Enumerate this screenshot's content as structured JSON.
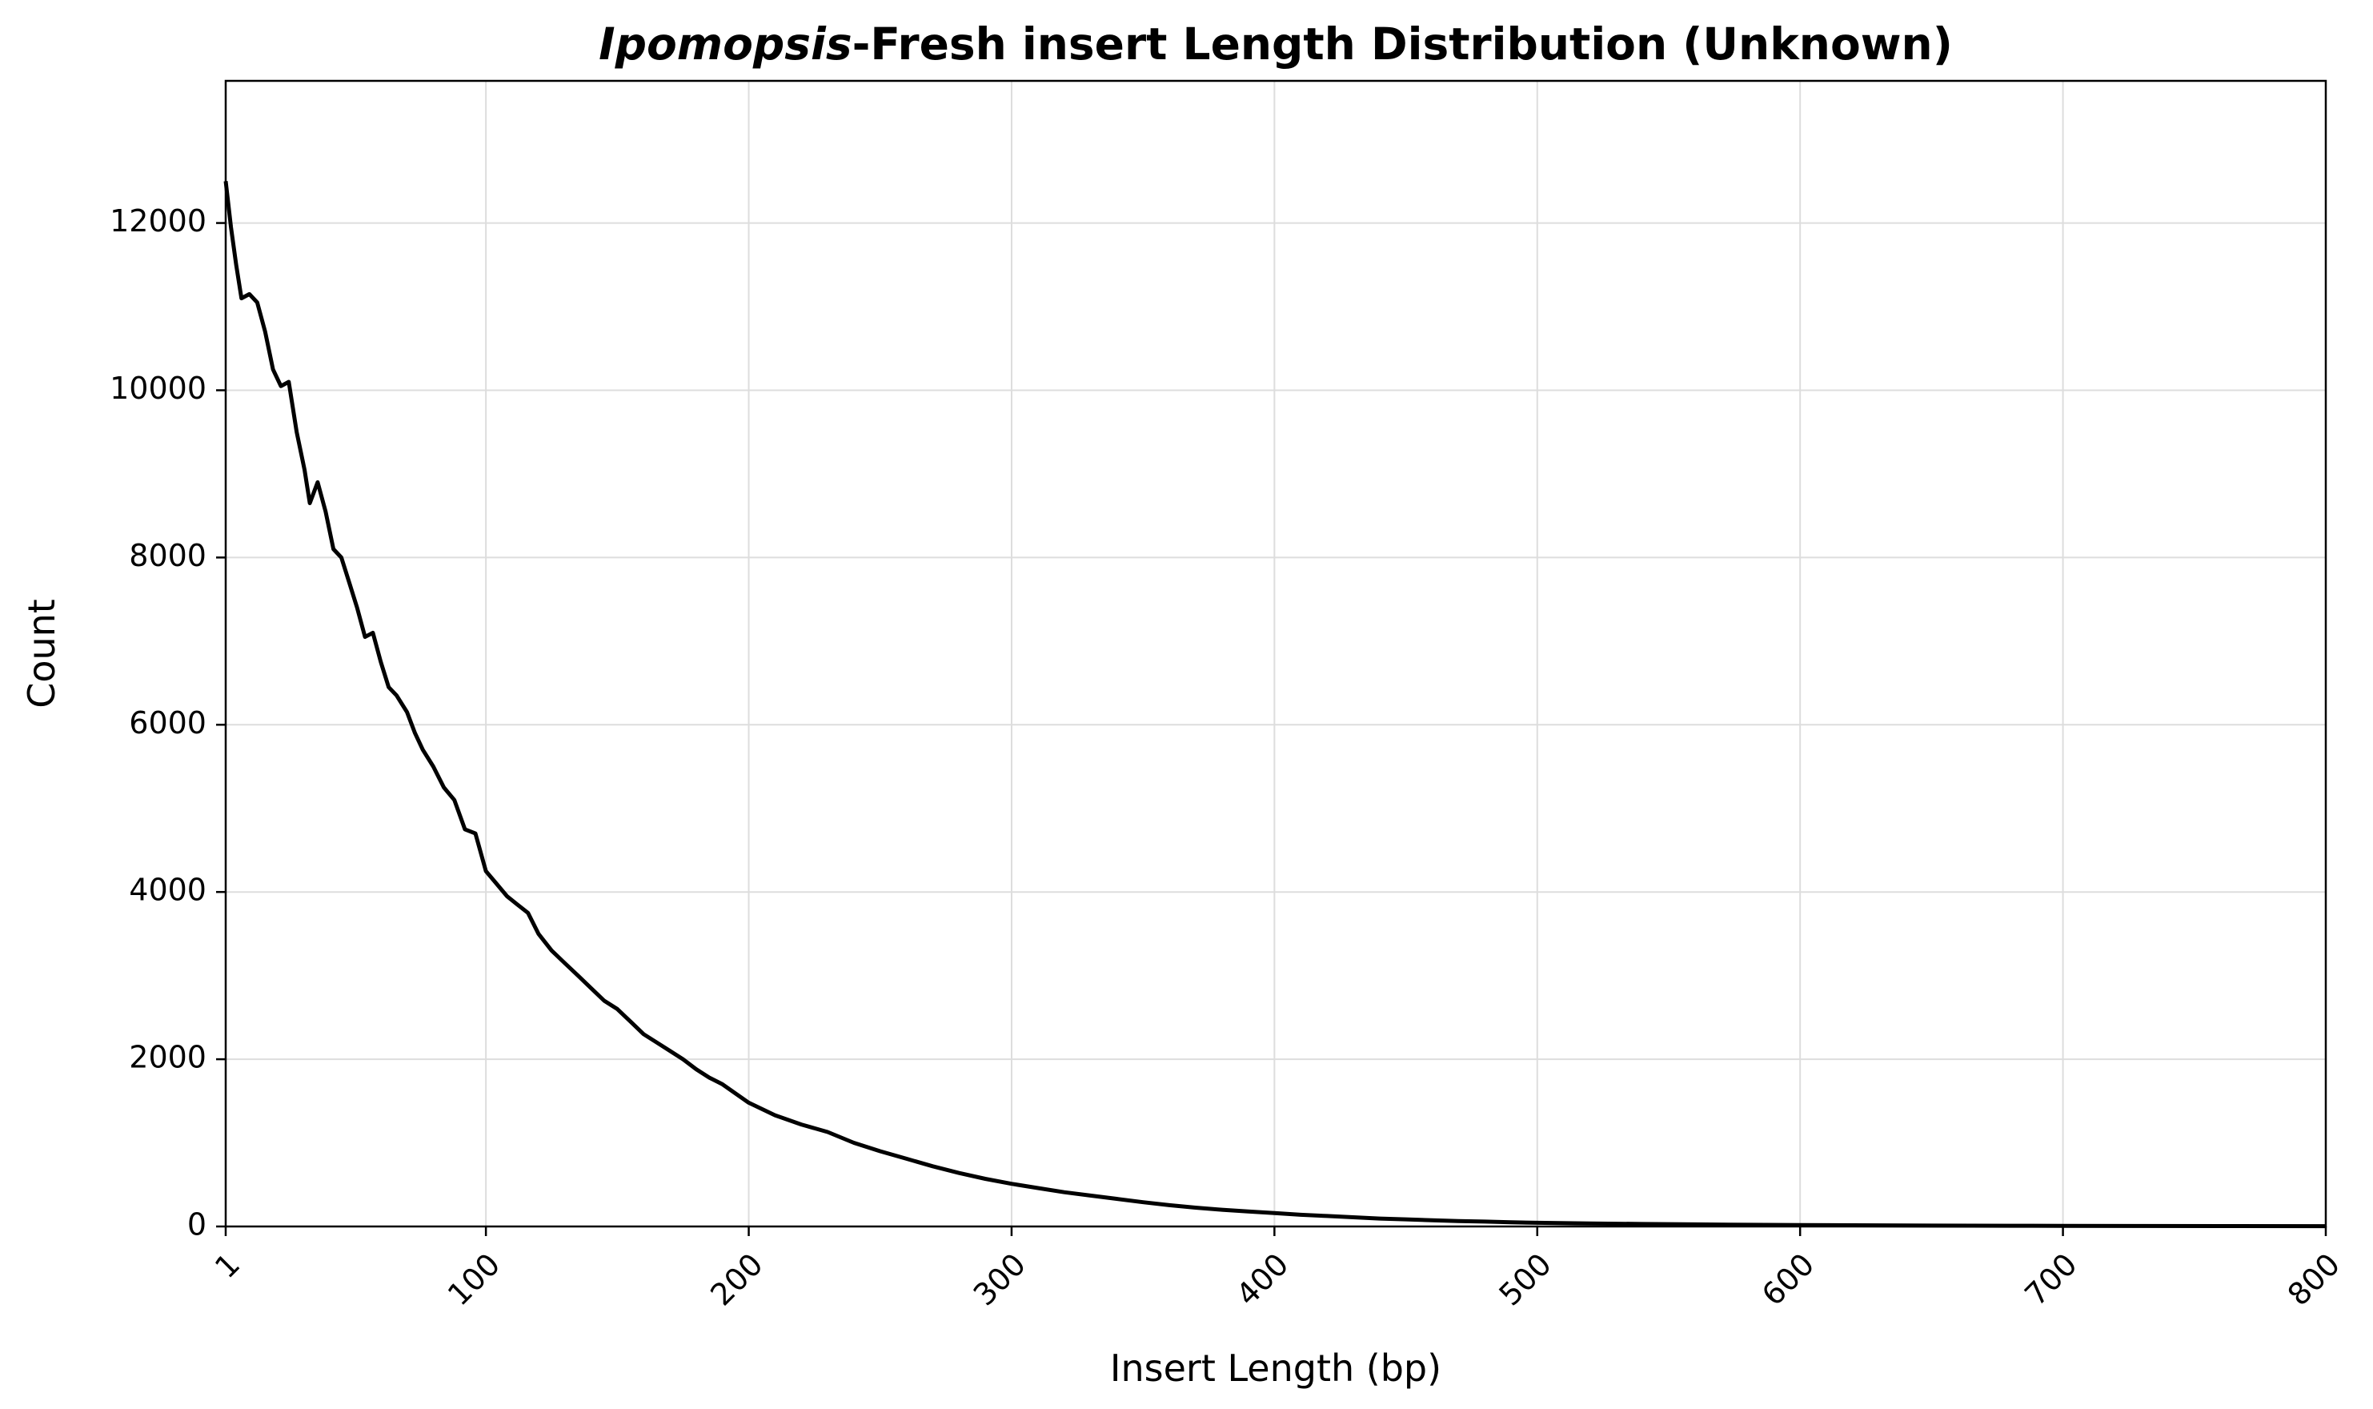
{
  "chart_data": {
    "type": "line",
    "title_italic": "Ipomopsis",
    "title_rest": "-Fresh insert Length Distribution (Unknown)",
    "xlabel": "Insert Length (bp)",
    "ylabel": "Count",
    "xlim": [
      1,
      800
    ],
    "ylim": [
      0,
      13700
    ],
    "x_ticks": [
      1,
      100,
      200,
      300,
      400,
      500,
      600,
      700,
      800
    ],
    "x_tick_labels": [
      "1",
      "100",
      "200",
      "300",
      "400",
      "500",
      "600",
      "700",
      "800"
    ],
    "y_ticks": [
      0,
      2000,
      4000,
      6000,
      8000,
      10000,
      12000
    ],
    "y_tick_labels": [
      "0",
      "2000",
      "4000",
      "6000",
      "8000",
      "10000",
      "12000"
    ],
    "grid": true,
    "series": [
      {
        "color": "#000000",
        "points": [
          [
            1,
            12500
          ],
          [
            3,
            11950
          ],
          [
            5,
            11500
          ],
          [
            7,
            11100
          ],
          [
            10,
            11150
          ],
          [
            13,
            11050
          ],
          [
            16,
            10700
          ],
          [
            19,
            10250
          ],
          [
            22,
            10050
          ],
          [
            25,
            10100
          ],
          [
            28,
            9500
          ],
          [
            31,
            9050
          ],
          [
            33,
            8650
          ],
          [
            36,
            8900
          ],
          [
            39,
            8550
          ],
          [
            42,
            8100
          ],
          [
            45,
            8000
          ],
          [
            48,
            7700
          ],
          [
            51,
            7400
          ],
          [
            54,
            7050
          ],
          [
            57,
            7100
          ],
          [
            60,
            6750
          ],
          [
            63,
            6450
          ],
          [
            66,
            6350
          ],
          [
            70,
            6150
          ],
          [
            73,
            5900
          ],
          [
            76,
            5700
          ],
          [
            80,
            5500
          ],
          [
            84,
            5250
          ],
          [
            88,
            5100
          ],
          [
            92,
            4750
          ],
          [
            96,
            4700
          ],
          [
            100,
            4250
          ],
          [
            104,
            4100
          ],
          [
            108,
            3950
          ],
          [
            112,
            3850
          ],
          [
            116,
            3750
          ],
          [
            120,
            3500
          ],
          [
            125,
            3300
          ],
          [
            130,
            3150
          ],
          [
            135,
            3000
          ],
          [
            140,
            2850
          ],
          [
            145,
            2700
          ],
          [
            150,
            2600
          ],
          [
            155,
            2450
          ],
          [
            160,
            2300
          ],
          [
            165,
            2200
          ],
          [
            170,
            2100
          ],
          [
            175,
            2000
          ],
          [
            180,
            1880
          ],
          [
            185,
            1780
          ],
          [
            190,
            1700
          ],
          [
            200,
            1480
          ],
          [
            210,
            1330
          ],
          [
            220,
            1220
          ],
          [
            230,
            1130
          ],
          [
            240,
            1000
          ],
          [
            250,
            900
          ],
          [
            260,
            810
          ],
          [
            270,
            720
          ],
          [
            280,
            640
          ],
          [
            290,
            570
          ],
          [
            300,
            510
          ],
          [
            310,
            460
          ],
          [
            320,
            410
          ],
          [
            330,
            370
          ],
          [
            340,
            330
          ],
          [
            350,
            290
          ],
          [
            360,
            255
          ],
          [
            370,
            225
          ],
          [
            380,
            200
          ],
          [
            390,
            180
          ],
          [
            400,
            160
          ],
          [
            410,
            140
          ],
          [
            420,
            125
          ],
          [
            430,
            110
          ],
          [
            440,
            95
          ],
          [
            450,
            85
          ],
          [
            460,
            75
          ],
          [
            470,
            65
          ],
          [
            480,
            58
          ],
          [
            490,
            50
          ],
          [
            500,
            44
          ],
          [
            520,
            36
          ],
          [
            540,
            30
          ],
          [
            560,
            25
          ],
          [
            580,
            20
          ],
          [
            600,
            17
          ],
          [
            620,
            14
          ],
          [
            650,
            11
          ],
          [
            680,
            9
          ],
          [
            700,
            8
          ],
          [
            730,
            6
          ],
          [
            760,
            5
          ],
          [
            800,
            4
          ]
        ]
      }
    ]
  }
}
